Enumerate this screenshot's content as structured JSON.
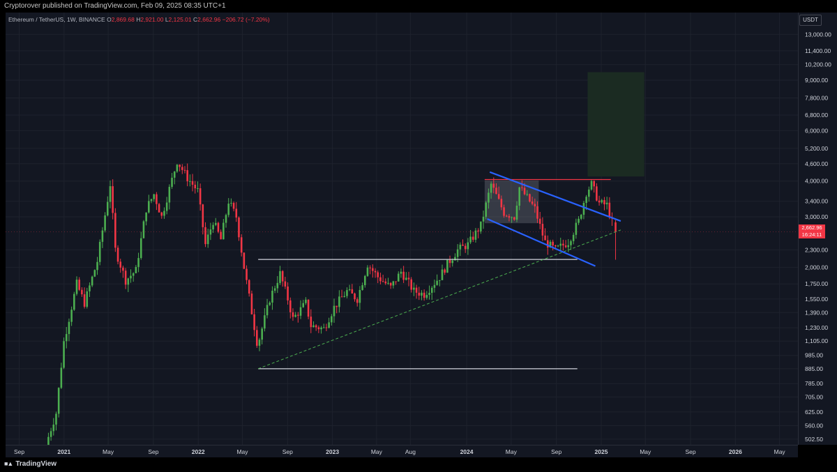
{
  "header": {
    "published_text": "Cryptorover published on TradingView.com, Feb 09, 2025 08:35 UTC+1"
  },
  "legend": {
    "symbol": "Ethereum / TetherUS, 1W, BINANCE",
    "open_label": "O",
    "open": "2,869.68",
    "high_label": "H",
    "high": "2,921.00",
    "low_label": "L",
    "low": "2,125.01",
    "close_label": "C",
    "close": "2,662.96",
    "change": "−206.72 (−7.20%)"
  },
  "price_axis": {
    "currency": "USDT",
    "last_price": "2,662.96",
    "countdown": "16:24:11"
  },
  "footer": {
    "brand": "TradingView"
  },
  "colors": {
    "background": "#131722",
    "up_candle": "#4caf50",
    "down_candle": "#f23645",
    "channel_line": "#2962ff",
    "resistance_line": "#f23645",
    "support_line": "#d1d4dc",
    "trend_line": "#4caf50",
    "target_box": "#1b2b22"
  },
  "chart_data": {
    "type": "candlestick",
    "title": "Ethereum / TetherUS, 1W, BINANCE",
    "y_scale": "log",
    "ylim": [
      480,
      15500
    ],
    "y_ticks": [
      "13,000.00",
      "11,400.00",
      "10,200.00",
      "9,000.00",
      "7,800.00",
      "6,800.00",
      "6,000.00",
      "5,200.00",
      "4,600.00",
      "4,000.00",
      "3,400.00",
      "3,000.00",
      "2,300.00",
      "2,000.00",
      "1,750.00",
      "1,550.00",
      "1,390.00",
      "1,230.00",
      "1,105.00",
      "985.00",
      "885.00",
      "785.00",
      "705.00",
      "625.00",
      "560.00",
      "502.50"
    ],
    "y_tick_values": [
      13000,
      11400,
      10200,
      9000,
      7800,
      6800,
      6000,
      5200,
      4600,
      4000,
      3400,
      3000,
      2300,
      2000,
      1750,
      1550,
      1390,
      1230,
      1105,
      985,
      885,
      785,
      705,
      625,
      560,
      502.5
    ],
    "x_ticks": [
      {
        "label": "Sep",
        "date": "2020-09-01"
      },
      {
        "label": "2021",
        "date": "2021-01-01"
      },
      {
        "label": "May",
        "date": "2021-05-01"
      },
      {
        "label": "Sep",
        "date": "2021-09-01"
      },
      {
        "label": "2022",
        "date": "2022-01-01"
      },
      {
        "label": "May",
        "date": "2022-05-01"
      },
      {
        "label": "Sep",
        "date": "2022-09-01"
      },
      {
        "label": "2023",
        "date": "2023-01-01"
      },
      {
        "label": "May",
        "date": "2023-05-01"
      },
      {
        "label": "Aug",
        "date": "2023-08-01"
      },
      {
        "label": "2024",
        "date": "2024-01-01"
      },
      {
        "label": "May",
        "date": "2024-05-01"
      },
      {
        "label": "Sep",
        "date": "2024-09-01"
      },
      {
        "label": "2025",
        "date": "2025-01-01"
      },
      {
        "label": "May",
        "date": "2025-05-01"
      },
      {
        "label": "Sep",
        "date": "2025-09-01"
      },
      {
        "label": "2026",
        "date": "2026-01-01"
      },
      {
        "label": "May",
        "date": "2026-05-01"
      }
    ],
    "xlim": [
      "2020-07-26",
      "2026-06-20"
    ],
    "price_path": [
      [
        "2020-11-16",
        480
      ],
      [
        "2020-12-14",
        620
      ],
      [
        "2021-01-04",
        1100
      ],
      [
        "2021-02-08",
        1750
      ],
      [
        "2021-03-01",
        1500
      ],
      [
        "2021-04-05",
        2100
      ],
      [
        "2021-05-10",
        3900
      ],
      [
        "2021-05-24",
        2300
      ],
      [
        "2021-06-21",
        1800
      ],
      [
        "2021-07-19",
        1950
      ],
      [
        "2021-08-16",
        3200
      ],
      [
        "2021-09-06",
        3600
      ],
      [
        "2021-09-27",
        3000
      ],
      [
        "2021-11-08",
        4700
      ],
      [
        "2021-12-06",
        4100
      ],
      [
        "2022-01-03",
        3700
      ],
      [
        "2022-01-24",
        2400
      ],
      [
        "2022-02-14",
        2900
      ],
      [
        "2022-03-07",
        2500
      ],
      [
        "2022-03-28",
        3400
      ],
      [
        "2022-04-18",
        3000
      ],
      [
        "2022-05-09",
        2000
      ],
      [
        "2022-06-13",
        1100
      ],
      [
        "2022-06-20",
        1130
      ],
      [
        "2022-07-18",
        1550
      ],
      [
        "2022-08-15",
        1900
      ],
      [
        "2022-09-05",
        1550
      ],
      [
        "2022-09-19",
        1320
      ],
      [
        "2022-10-24",
        1500
      ],
      [
        "2022-11-07",
        1250
      ],
      [
        "2022-12-12",
        1220
      ],
      [
        "2023-01-09",
        1450
      ],
      [
        "2023-02-13",
        1650
      ],
      [
        "2023-03-13",
        1550
      ],
      [
        "2023-04-10",
        2050
      ],
      [
        "2023-05-08",
        1850
      ],
      [
        "2023-06-12",
        1700
      ],
      [
        "2023-07-10",
        1930
      ],
      [
        "2023-08-14",
        1650
      ],
      [
        "2023-09-11",
        1610
      ],
      [
        "2023-10-23",
        1850
      ],
      [
        "2023-11-13",
        2050
      ],
      [
        "2023-12-11",
        2300
      ],
      [
        "2024-01-08",
        2400
      ],
      [
        "2024-02-12",
        2800
      ],
      [
        "2024-03-11",
        3900
      ],
      [
        "2024-04-15",
        3100
      ],
      [
        "2024-05-13",
        3000
      ],
      [
        "2024-05-27",
        3800
      ],
      [
        "2024-06-17",
        3500
      ],
      [
        "2024-07-08",
        3200
      ],
      [
        "2024-07-29",
        2600
      ],
      [
        "2024-08-05",
        2450
      ],
      [
        "2024-09-02",
        2300
      ],
      [
        "2024-10-07",
        2450
      ],
      [
        "2024-11-04",
        2900
      ],
      [
        "2024-11-25",
        3650
      ],
      [
        "2024-12-09",
        3900
      ],
      [
        "2024-12-30",
        3350
      ],
      [
        "2025-01-20",
        3300
      ],
      [
        "2025-02-03",
        2869.68
      ],
      [
        "2025-02-09",
        2662.96
      ]
    ],
    "last_candle": {
      "date": "2025-02-09",
      "open": 2869.68,
      "high": 2921.0,
      "low": 2125.01,
      "close": 2662.96
    },
    "annotations": {
      "support_low": {
        "price": 885,
        "from": "2022-06-13",
        "to": "2024-10-28"
      },
      "support_mid": {
        "price": 2130,
        "from": "2022-06-13",
        "to": "2024-10-28"
      },
      "resistance": {
        "price": 4050,
        "from": "2024-02-19",
        "to": "2025-01-27"
      },
      "trendline": {
        "from": [
          "2022-06-13",
          885
        ],
        "to": [
          "2025-02-23",
          2700
        ]
      },
      "channel_upper": {
        "from": [
          "2024-03-04",
          4300
        ],
        "to": [
          "2025-02-23",
          2900
        ]
      },
      "channel_lower": {
        "from": [
          "2024-02-26",
          2950
        ],
        "to": [
          "2024-12-16",
          2020
        ]
      },
      "range_box": {
        "from": "2024-02-19",
        "to": "2024-07-15",
        "high": 4020,
        "low": 2850
      },
      "target_box": {
        "from": "2024-11-25",
        "to": "2025-04-28",
        "high": 9600,
        "low": 4150
      }
    }
  }
}
